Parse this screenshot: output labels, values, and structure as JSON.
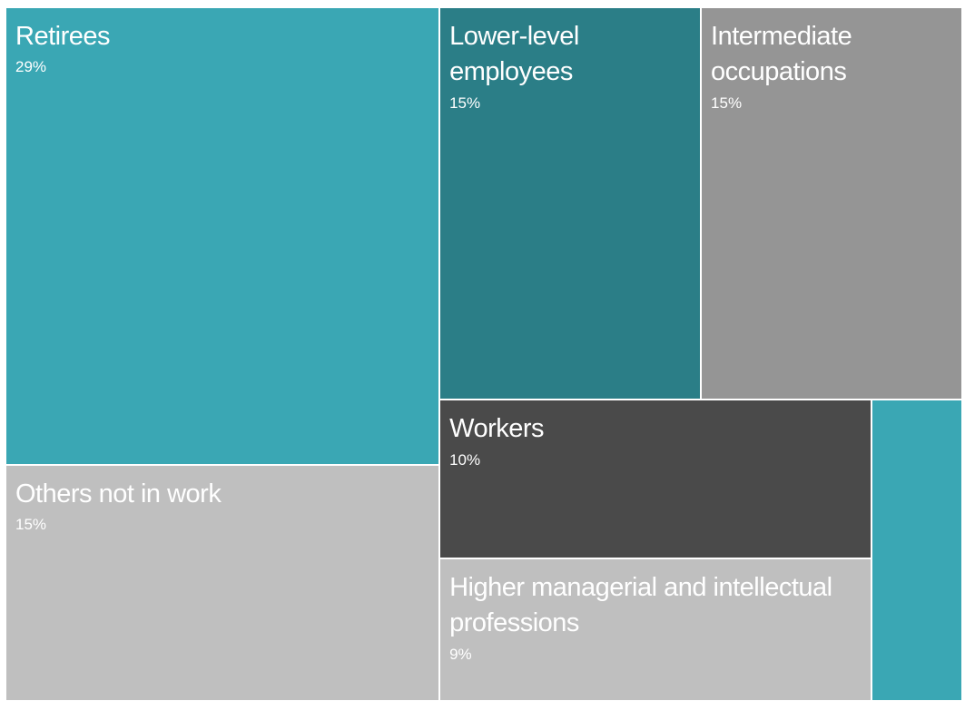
{
  "chart_data": {
    "type": "treemap",
    "categories": [
      "Retirees",
      "Lower-level employees",
      "Intermediate occupations",
      "Others not in work",
      "Workers",
      "Higher managerial and intellectual professions",
      null
    ],
    "values": [
      29,
      15,
      15,
      15,
      10,
      9,
      4
    ],
    "value_labels": [
      "29%",
      "15%",
      "15%",
      "15%",
      "10%",
      "9%",
      null
    ],
    "colors": [
      "#3aa7b4",
      "#2b7e87",
      "#959595",
      "#bfbfbf",
      "#4a4a4a",
      "#bfbfbf",
      "#3aa7b4"
    ]
  }
}
